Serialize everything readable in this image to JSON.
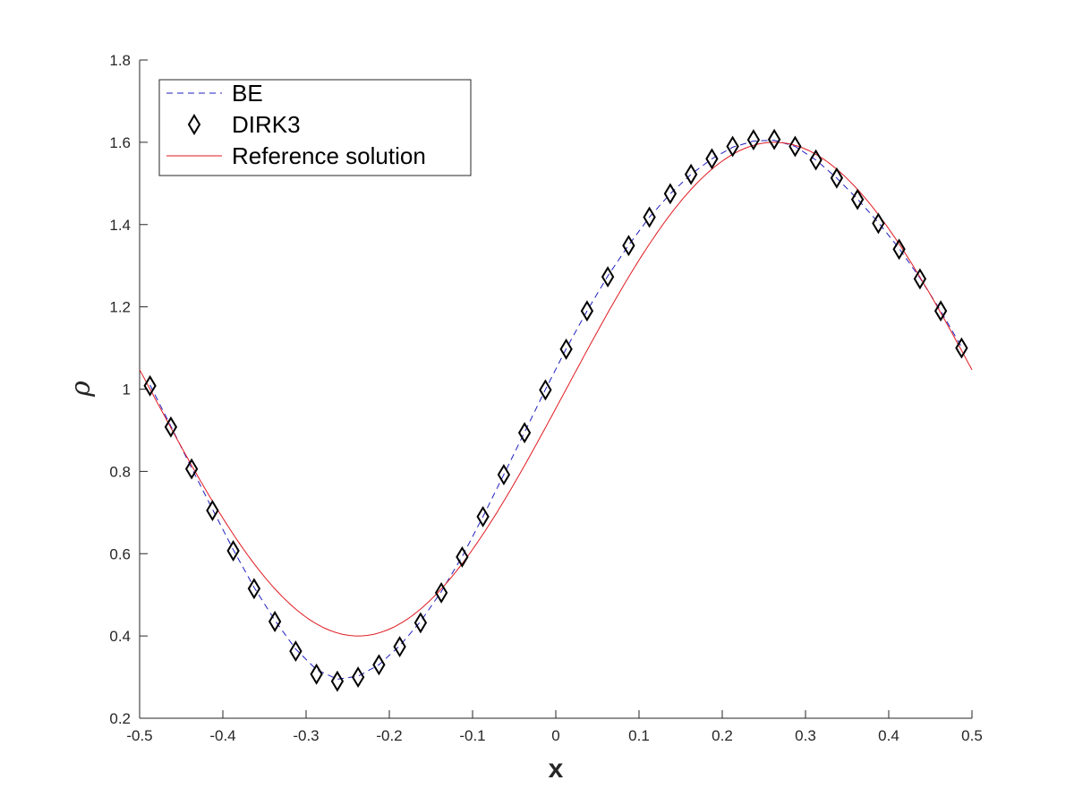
{
  "chart_data": {
    "type": "line",
    "xlabel": "x",
    "ylabel": "ρ",
    "xlim": [
      -0.5,
      0.5
    ],
    "ylim": [
      0.2,
      1.8
    ],
    "xticks": [
      -0.5,
      -0.4,
      -0.3,
      -0.2,
      -0.1,
      0,
      0.1,
      0.2,
      0.3,
      0.4,
      0.5
    ],
    "xtick_labels": [
      "-0.5",
      "-0.4",
      "-0.3",
      "-0.2",
      "-0.1",
      "0",
      "0.1",
      "0.2",
      "0.3",
      "0.4",
      "0.5"
    ],
    "yticks": [
      0.2,
      0.4,
      0.6,
      0.8,
      1,
      1.2,
      1.4,
      1.6,
      1.8
    ],
    "ytick_labels": [
      "0.2",
      "0.4",
      "0.6",
      "0.8",
      "1",
      "1.2",
      "1.4",
      "1.6",
      "1.8"
    ],
    "grid": false,
    "legend_position": "top-left",
    "x": [
      -0.4875,
      -0.4625,
      -0.4375,
      -0.4125,
      -0.3875,
      -0.3625,
      -0.3375,
      -0.3125,
      -0.2875,
      -0.2625,
      -0.2375,
      -0.2125,
      -0.1875,
      -0.1625,
      -0.1375,
      -0.1125,
      -0.0875,
      -0.0625,
      -0.0375,
      -0.0125,
      0.0125,
      0.0375,
      0.0625,
      0.0875,
      0.1125,
      0.1375,
      0.1625,
      0.1875,
      0.2125,
      0.2375,
      0.2625,
      0.2875,
      0.3125,
      0.3375,
      0.3625,
      0.3875,
      0.4125,
      0.4375,
      0.4625,
      0.4875
    ],
    "series": [
      {
        "name": "BE",
        "style": "dashed",
        "color": "#1f1fbf",
        "values": [
          1.01,
          0.91,
          0.808,
          0.708,
          0.61,
          0.518,
          0.438,
          0.368,
          0.318,
          0.295,
          0.302,
          0.33,
          0.376,
          0.435,
          0.508,
          0.593,
          0.69,
          0.792,
          0.895,
          0.999,
          1.098,
          1.19,
          1.275,
          1.35,
          1.418,
          1.475,
          1.522,
          1.56,
          1.588,
          1.603,
          1.605,
          1.59,
          1.557,
          1.513,
          1.462,
          1.405,
          1.342,
          1.27,
          1.19,
          1.102
        ]
      },
      {
        "name": "DIRK3",
        "style": "markers",
        "marker": "diamond",
        "color": "#000000",
        "values": [
          1.008,
          0.908,
          0.806,
          0.705,
          0.607,
          0.515,
          0.435,
          0.363,
          0.307,
          0.29,
          0.3,
          0.33,
          0.374,
          0.432,
          0.505,
          0.592,
          0.69,
          0.792,
          0.894,
          0.998,
          1.097,
          1.19,
          1.273,
          1.349,
          1.418,
          1.475,
          1.522,
          1.56,
          1.59,
          1.606,
          1.607,
          1.59,
          1.557,
          1.513,
          1.461,
          1.403,
          1.34,
          1.268,
          1.19,
          1.1
        ]
      },
      {
        "name": "Reference solution",
        "style": "solid",
        "color": "#e0191f",
        "function": "1 + 0.6*sin(2*pi*(x - 0.0125))",
        "x_range": [
          -0.5,
          0.5
        ]
      }
    ]
  }
}
